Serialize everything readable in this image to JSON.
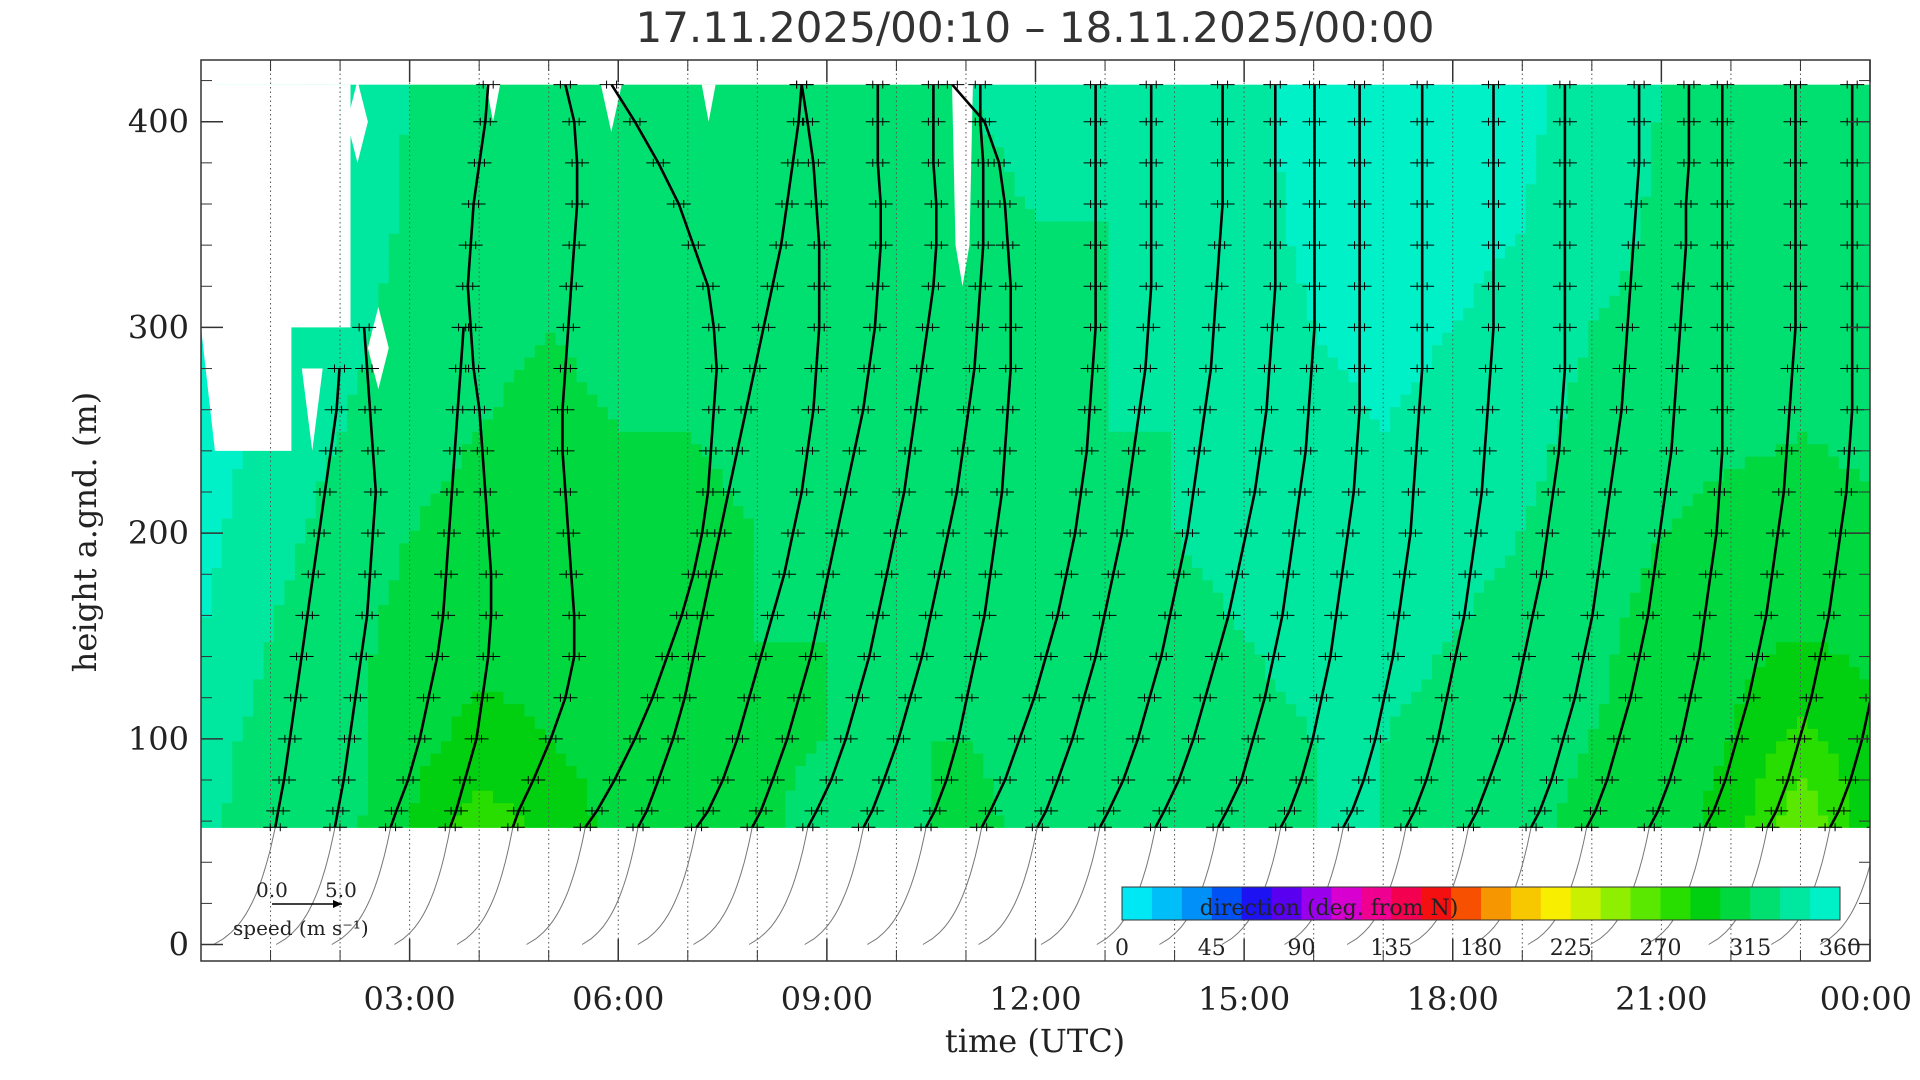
{
  "chart_data": {
    "type": "heatmap",
    "title": "17.11.2025/00:10 – 18.11.2025/00:00",
    "xlabel": "time (UTC)",
    "ylabel": "height a.gnd. (m)",
    "x_ticks": [
      "03:00",
      "06:00",
      "09:00",
      "12:00",
      "15:00",
      "18:00",
      "21:00",
      "00:00"
    ],
    "x_tick_hours": [
      3,
      6,
      9,
      12,
      15,
      18,
      21,
      24
    ],
    "xlim_hours": [
      0,
      24
    ],
    "y_ticks": [
      "0",
      "100",
      "200",
      "300",
      "400"
    ],
    "y_tick_values": [
      0,
      100,
      200,
      300,
      400
    ],
    "ylim": [
      -8,
      430
    ],
    "data_height_range_m": [
      57,
      418
    ],
    "colorbar": {
      "label": "direction (deg. from N)",
      "ticks": [
        "0",
        "45",
        "90",
        "135",
        "180",
        "225",
        "270",
        "315",
        "360"
      ],
      "range": [
        0,
        360
      ],
      "colors": [
        "#00e8f4",
        "#00bff8",
        "#0090f8",
        "#0052f5",
        "#1d12f2",
        "#5a00f0",
        "#9a00ec",
        "#d800d0",
        "#f00090",
        "#f40050",
        "#f41010",
        "#f65000",
        "#f69600",
        "#f7c800",
        "#f8ee00",
        "#c8f000",
        "#8ef000",
        "#5ae800",
        "#28de00",
        "#00d010",
        "#00d840",
        "#00e070",
        "#00e8a0",
        "#00f0c8"
      ]
    },
    "speed_legend": {
      "label": "speed (m s⁻¹)",
      "scale_min": "0.0",
      "scale_max": "5.0"
    },
    "profile_times_hours": [
      0.9,
      1.8,
      2.6,
      3.5,
      4.4,
      5.4,
      6.2,
      7.0,
      7.8,
      8.6,
      9.4,
      10.3,
      11.1,
      11.9,
      12.8,
      13.6,
      14.5,
      15.4,
      16.3,
      17.2,
      18.1,
      19.0,
      19.8,
      20.7,
      21.5,
      22.4,
      23.3,
      24.0
    ],
    "profile_heights_m": [
      57,
      65,
      80,
      100,
      120,
      140,
      160,
      180,
      200,
      220,
      240,
      260,
      280,
      300,
      320,
      340,
      360,
      380,
      400,
      418
    ],
    "wind_speed_profiles_m_s": [
      [
        0.4,
        0.5,
        0.7,
        0.9,
        1.1,
        1.3,
        1.5,
        1.7,
        1.9,
        2.1,
        2.3,
        2.5,
        2.6
      ],
      [
        0.3,
        0.4,
        0.6,
        0.8,
        1.0,
        1.2,
        1.4,
        1.5,
        1.6,
        1.7,
        1.6,
        1.5,
        1.4,
        1.3
      ],
      [
        0.3,
        0.5,
        0.9,
        1.3,
        1.6,
        1.9,
        2.1,
        2.2,
        2.3,
        2.4,
        2.5,
        2.6,
        2.7,
        2.8
      ],
      [
        0.2,
        0.4,
        0.7,
        1.1,
        1.3,
        1.5,
        1.6,
        1.6,
        1.5,
        1.4,
        1.3,
        1.2,
        1.0,
        0.9,
        0.8,
        0.9,
        1.0,
        1.2,
        1.4,
        1.5
      ],
      [
        0.2,
        0.4,
        0.9,
        1.5,
        2.0,
        2.3,
        2.3,
        2.2,
        2.1,
        2.0,
        1.9,
        1.9,
        2.0,
        2.1,
        2.2,
        2.3,
        2.4,
        2.4,
        2.3,
        2.0
      ],
      [
        0.3,
        0.7,
        1.3,
        2.0,
        2.6,
        3.1,
        3.6,
        4.0,
        4.3,
        4.5,
        4.6,
        4.7,
        4.8,
        4.7,
        4.5,
        4.0,
        3.5,
        2.8,
        2.0,
        1.2
      ],
      [
        0.2,
        0.5,
        0.9,
        1.4,
        1.8,
        2.1,
        2.4,
        2.7,
        3.0,
        3.3,
        3.6,
        3.9,
        4.2,
        4.5,
        4.8,
        5.1,
        5.3,
        5.5,
        5.7,
        5.8
      ],
      [
        0.3,
        0.7,
        1.2,
        1.7,
        2.1,
        2.5,
        2.9,
        3.3,
        3.6,
        3.9,
        4.1,
        4.3,
        4.4,
        4.5,
        4.5,
        4.5,
        4.4,
        4.3,
        4.1,
        3.9
      ],
      [
        0.3,
        0.6,
        1.0,
        1.5,
        1.9,
        2.3,
        2.6,
        2.9,
        3.2,
        3.5,
        3.8,
        4.1,
        4.3,
        4.5,
        4.6,
        4.7,
        4.7,
        4.6,
        4.6,
        4.6
      ],
      [
        0.3,
        0.6,
        1.1,
        1.6,
        2.0,
        2.4,
        2.7,
        3.0,
        3.3,
        3.6,
        3.8,
        4.0,
        4.2,
        4.4,
        4.6,
        4.7,
        4.7,
        4.6,
        4.6,
        4.6
      ],
      [
        0.3,
        0.6,
        1.0,
        1.5,
        1.9,
        2.3,
        2.6,
        2.9,
        3.2,
        3.5,
        3.7,
        3.9,
        4.1,
        4.2,
        4.3,
        4.4,
        4.4,
        4.4,
        4.3,
        4.3
      ],
      [
        0.3,
        0.6,
        1.0,
        1.4,
        1.7,
        2.0,
        2.3,
        2.5,
        2.7,
        2.9,
        3.0,
        3.1,
        3.2,
        3.2,
        3.2,
        3.1,
        3.0,
        2.8,
        2.3,
        1.2
      ],
      [
        0.3,
        0.6,
        1.1,
        1.6,
        2.1,
        2.5,
        2.9,
        3.2,
        3.5,
        3.7,
        3.9,
        4.0,
        4.1,
        4.2,
        4.2,
        4.2,
        4.2,
        4.2,
        4.2,
        4.2
      ],
      [
        0.3,
        0.6,
        1.0,
        1.5,
        1.9,
        2.3,
        2.6,
        2.9,
        3.2,
        3.4,
        3.6,
        3.8,
        4.0,
        4.1,
        4.2,
        4.2,
        4.2,
        4.2,
        4.2,
        4.2
      ],
      [
        0.3,
        0.6,
        1.1,
        1.6,
        2.0,
        2.4,
        2.7,
        3.0,
        3.3,
        3.5,
        3.7,
        3.9,
        4.1,
        4.2,
        4.3,
        4.4,
        4.5,
        4.5,
        4.5,
        4.5
      ],
      [
        0.3,
        0.6,
        1.1,
        1.6,
        2.0,
        2.4,
        2.8,
        3.1,
        3.4,
        3.7,
        3.9,
        4.1,
        4.2,
        4.3,
        4.4,
        4.4,
        4.4,
        4.4,
        4.4,
        4.4
      ],
      [
        0.3,
        0.6,
        1.1,
        1.5,
        1.9,
        2.2,
        2.5,
        2.7,
        2.9,
        3.1,
        3.3,
        3.4,
        3.5,
        3.6,
        3.6,
        3.6,
        3.6,
        3.6,
        3.6,
        3.6
      ],
      [
        0.3,
        0.6,
        1.0,
        1.4,
        1.7,
        2.0,
        2.2,
        2.4,
        2.6,
        2.8,
        2.9,
        3.0,
        3.0,
        3.0,
        3.0,
        3.0,
        3.0,
        3.0,
        3.0,
        3.0
      ],
      [
        0.3,
        0.6,
        1.0,
        1.4,
        1.7,
        2.0,
        2.2,
        2.4,
        2.6,
        2.7,
        2.8,
        2.9,
        3.0,
        3.0,
        3.0,
        3.0,
        3.0,
        3.0,
        3.0,
        3.0
      ],
      [
        0.3,
        0.6,
        1.0,
        1.4,
        1.7,
        2.0,
        2.3,
        2.5,
        2.7,
        2.9,
        3.0,
        3.1,
        3.2,
        3.3,
        3.3,
        3.3,
        3.3,
        3.3,
        3.3,
        3.3
      ],
      [
        0.3,
        0.6,
        1.0,
        1.5,
        1.9,
        2.2,
        2.5,
        2.8,
        3.0,
        3.2,
        3.4,
        3.5,
        3.6,
        3.6,
        3.6,
        3.6,
        3.6,
        3.6,
        3.6,
        3.6
      ],
      [
        0.3,
        0.6,
        1.0,
        1.4,
        1.8,
        2.1,
        2.4,
        2.6,
        2.8,
        3.0,
        3.2,
        3.4,
        3.5,
        3.6,
        3.7,
        3.8,
        3.9,
        4.0,
        4.0,
        4.0
      ],
      [
        0.3,
        0.6,
        1.0,
        1.4,
        1.8,
        2.1,
        2.4,
        2.6,
        2.8,
        3.0,
        3.2,
        3.3,
        3.4,
        3.5,
        3.6,
        3.7,
        3.7,
        3.8,
        3.8,
        3.8
      ],
      [
        0.3,
        0.6,
        1.0,
        1.4,
        1.7,
        2.0,
        2.2,
        2.4,
        2.6,
        2.7,
        2.8,
        2.8,
        2.8,
        2.8,
        2.8,
        2.8,
        2.8,
        2.8,
        2.8,
        2.8
      ],
      [
        0.3,
        0.6,
        1.0,
        1.4,
        1.8,
        2.1,
        2.4,
        2.6,
        2.8,
        3.0,
        3.1,
        3.2,
        3.3,
        3.4,
        3.4,
        3.4,
        3.4,
        3.4,
        3.4,
        3.4
      ],
      [
        0.3,
        0.6,
        1.0,
        1.4,
        1.8,
        2.1,
        2.4,
        2.6,
        2.8,
        3.0,
        3.1,
        3.2,
        3.2,
        3.2,
        3.2,
        3.2,
        3.2,
        3.2,
        3.2,
        3.2
      ],
      [
        0.3,
        0.6,
        1.0,
        1.4,
        1.7,
        1.9,
        2.1,
        2.2,
        2.3,
        2.4,
        2.5,
        2.6,
        2.7,
        2.8,
        2.9,
        3.0,
        3.0,
        3.0,
        3.0,
        2.9
      ],
      [
        0.3,
        0.5,
        0.8,
        1.0
      ]
    ],
    "direction_field_deg": {
      "columns_hours": [
        0,
        1,
        2,
        3,
        4,
        5,
        6,
        7,
        8,
        9,
        10,
        11,
        12,
        13,
        14,
        15,
        16,
        17,
        18,
        19,
        20,
        21,
        22,
        23,
        24
      ],
      "rows_m": [
        57,
        100,
        150,
        200,
        250,
        300,
        350,
        418
      ],
      "values": [
        [
          335,
          320,
          322,
          300,
          275,
          290,
          305,
          300,
          310,
          325,
          320,
          310,
          320,
          320,
          320,
          320,
          330,
          330,
          325,
          320,
          310,
          305,
          295,
          255,
          295
        ],
        [
          335,
          325,
          322,
          305,
          295,
          300,
          305,
          305,
          310,
          315,
          315,
          315,
          320,
          320,
          320,
          325,
          330,
          330,
          325,
          320,
          315,
          310,
          300,
          280,
          295
        ],
        [
          345,
          330,
          320,
          310,
          305,
          305,
          310,
          310,
          315,
          315,
          315,
          318,
          320,
          320,
          325,
          330,
          335,
          335,
          330,
          325,
          318,
          310,
          305,
          300,
          305
        ],
        [
          350,
          335,
          325,
          315,
          310,
          310,
          312,
          312,
          315,
          315,
          318,
          320,
          322,
          325,
          330,
          335,
          340,
          340,
          335,
          330,
          322,
          315,
          310,
          310,
          312
        ],
        [
          355,
          340,
          330,
          320,
          315,
          312,
          315,
          315,
          318,
          318,
          320,
          320,
          325,
          330,
          330,
          335,
          340,
          345,
          340,
          335,
          325,
          320,
          318,
          315,
          318
        ],
        [
          355,
          345,
          335,
          325,
          318,
          315,
          318,
          318,
          320,
          320,
          322,
          325,
          328,
          330,
          330,
          338,
          345,
          350,
          345,
          340,
          330,
          325,
          320,
          320,
          320
        ],
        [
          350,
          345,
          338,
          328,
          320,
          318,
          320,
          320,
          322,
          322,
          325,
          328,
          330,
          330,
          332,
          340,
          348,
          352,
          350,
          345,
          335,
          328,
          325,
          322,
          322
        ],
        [
          350,
          345,
          340,
          330,
          322,
          320,
          322,
          322,
          325,
          325,
          328,
          330,
          332,
          332,
          335,
          342,
          350,
          355,
          355,
          350,
          338,
          330,
          328,
          325,
          325
        ]
      ]
    }
  }
}
